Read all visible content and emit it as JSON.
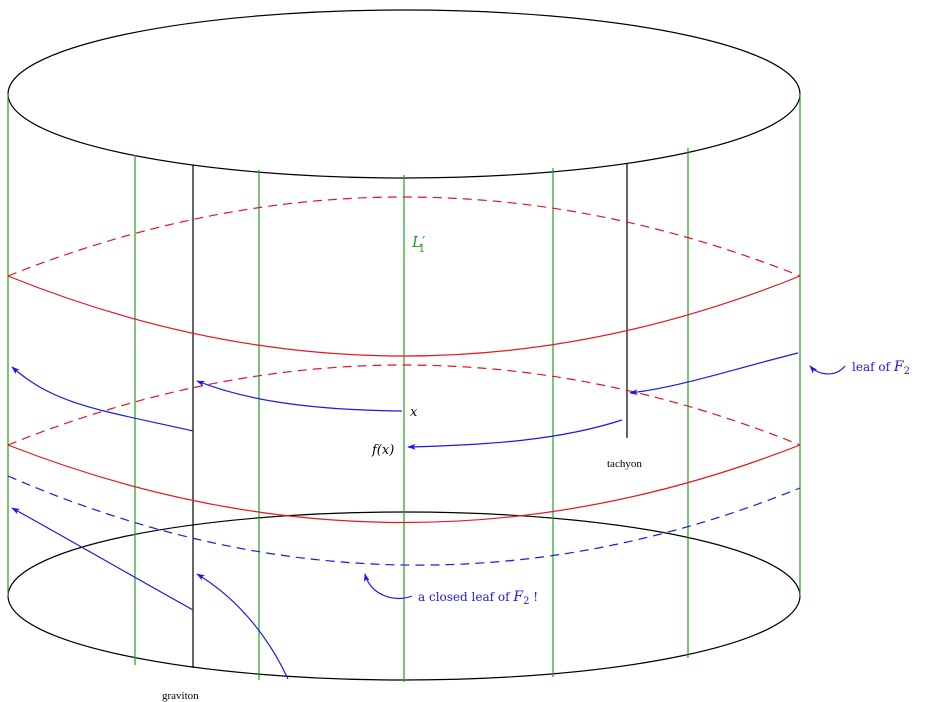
{
  "labels": {
    "leaf_L1": "L",
    "leaf_L1_sub": "1",
    "leaf_L1_prime": "′",
    "x": "x",
    "fx": "f(x)",
    "tachyon": "tachyon",
    "graviton": "graviton",
    "leaf_of_F2_prefix": "leaf of ",
    "closed_leaf_prefix": "a closed leaf of ",
    "closed_leaf_suffix": " !",
    "F": "F",
    "F_sub": "2"
  },
  "colors": {
    "outline": "#000000",
    "green": "#22a022",
    "red": "#e8141e",
    "blue": "#1a1ae6"
  }
}
